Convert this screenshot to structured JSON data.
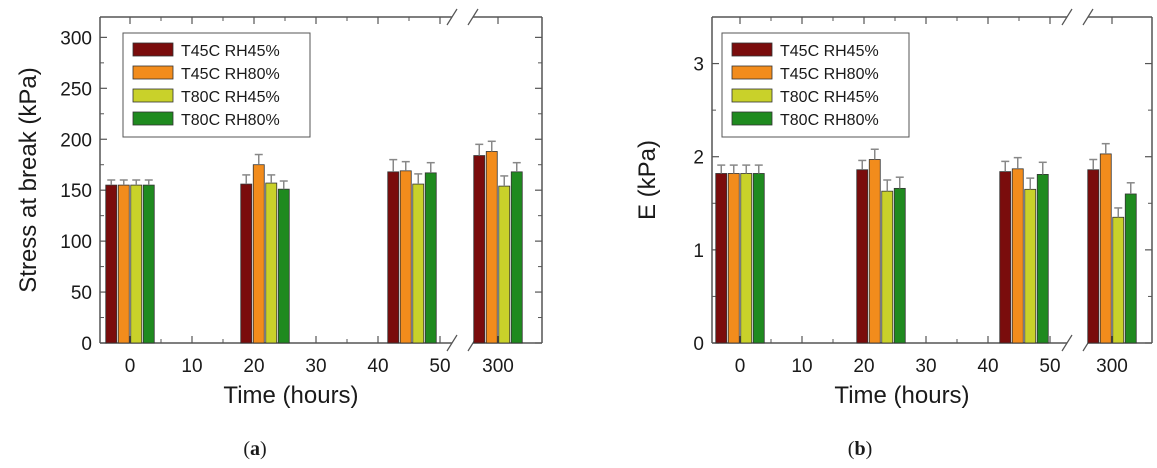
{
  "colors": {
    "T45C RH45%": "#7a0c0c",
    "T45C RH80%": "#f28c1c",
    "T80C RH45%": "#c9d12a",
    "T80C RH80%": "#1f8a1f",
    "axis": "#555555",
    "errorbar": "#888888"
  },
  "chart_data": [
    {
      "type": "bar",
      "panel_label": "(a)",
      "xlabel": "Time (hours)",
      "ylabel": "Stress at break (kPa)",
      "ylim": [
        0,
        320
      ],
      "yticks": [
        0,
        50,
        100,
        150,
        200,
        250,
        300
      ],
      "xticks_main": [
        "0",
        "10",
        "20",
        "30",
        "40",
        "50"
      ],
      "xticks_break": [
        "300"
      ],
      "axis_break": true,
      "groups": [
        "0",
        "24",
        "48",
        "300"
      ],
      "legend_placement": "top-left",
      "grid": false,
      "series": [
        {
          "name": "T45C RH45%",
          "values": [
            155,
            156,
            168,
            184
          ],
          "errors": [
            5,
            9,
            12,
            11
          ]
        },
        {
          "name": "T45C RH80%",
          "values": [
            155,
            175,
            169,
            188
          ],
          "errors": [
            5,
            10,
            9,
            10
          ]
        },
        {
          "name": "T80C RH45%",
          "values": [
            155,
            157,
            156,
            154
          ],
          "errors": [
            5,
            8,
            10,
            10
          ]
        },
        {
          "name": "T80C RH80%",
          "values": [
            155,
            151,
            167,
            168
          ],
          "errors": [
            5,
            8,
            10,
            9
          ]
        }
      ]
    },
    {
      "type": "bar",
      "panel_label": "(b)",
      "xlabel": "Time (hours)",
      "ylabel": "E (kPa)",
      "ylim": [
        0,
        3.5
      ],
      "yticks": [
        0,
        1,
        2,
        3
      ],
      "xticks_main": [
        "0",
        "10",
        "20",
        "30",
        "40",
        "50"
      ],
      "xticks_break": [
        "300"
      ],
      "axis_break": true,
      "groups": [
        "0",
        "24",
        "48",
        "300"
      ],
      "legend_placement": "top-left",
      "grid": false,
      "series": [
        {
          "name": "T45C RH45%",
          "values": [
            1.82,
            1.86,
            1.84,
            1.86
          ],
          "errors": [
            0.09,
            0.1,
            0.11,
            0.11
          ]
        },
        {
          "name": "T45C RH80%",
          "values": [
            1.82,
            1.97,
            1.87,
            2.03
          ],
          "errors": [
            0.09,
            0.11,
            0.12,
            0.11
          ]
        },
        {
          "name": "T80C RH45%",
          "values": [
            1.82,
            1.63,
            1.65,
            1.35
          ],
          "errors": [
            0.09,
            0.12,
            0.12,
            0.1
          ]
        },
        {
          "name": "T80C RH80%",
          "values": [
            1.82,
            1.66,
            1.81,
            1.6
          ],
          "errors": [
            0.09,
            0.12,
            0.13,
            0.12
          ]
        }
      ]
    }
  ]
}
